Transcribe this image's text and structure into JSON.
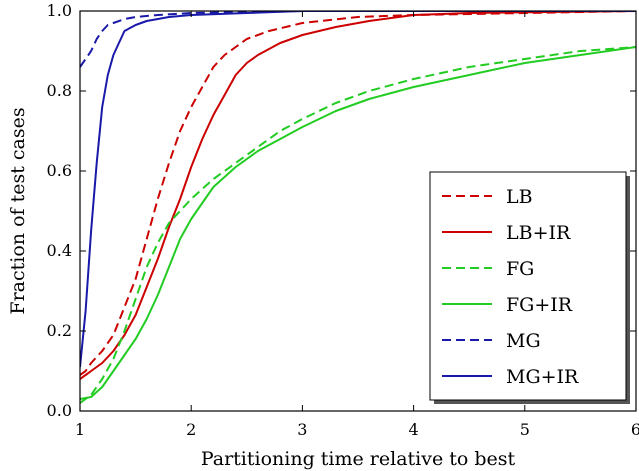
{
  "chart_data": {
    "type": "line",
    "title": "",
    "xlabel": "Partitioning time relative to best",
    "ylabel": "Fraction of test cases",
    "xlim": [
      1,
      6
    ],
    "ylim": [
      0.0,
      1.0
    ],
    "x_ticks": [
      "1",
      "2",
      "3",
      "4",
      "5",
      "6"
    ],
    "y_ticks": [
      "0.0",
      "0.2",
      "0.4",
      "0.6",
      "0.8",
      "1.0"
    ],
    "grid": false,
    "legend_position": "lower-right",
    "series": [
      {
        "name": "LB",
        "color": "#cc0000",
        "dashed": true,
        "points": [
          [
            1.0,
            0.09
          ],
          [
            1.05,
            0.1
          ],
          [
            1.1,
            0.12
          ],
          [
            1.2,
            0.15
          ],
          [
            1.3,
            0.19
          ],
          [
            1.4,
            0.26
          ],
          [
            1.5,
            0.33
          ],
          [
            1.6,
            0.43
          ],
          [
            1.7,
            0.53
          ],
          [
            1.8,
            0.62
          ],
          [
            1.9,
            0.7
          ],
          [
            2.0,
            0.76
          ],
          [
            2.1,
            0.81
          ],
          [
            2.2,
            0.86
          ],
          [
            2.3,
            0.89
          ],
          [
            2.4,
            0.91
          ],
          [
            2.5,
            0.93
          ],
          [
            2.7,
            0.95
          ],
          [
            3.0,
            0.97
          ],
          [
            3.5,
            0.985
          ],
          [
            4.0,
            0.99
          ],
          [
            5.0,
            0.995
          ],
          [
            6.0,
            1.0
          ]
        ]
      },
      {
        "name": "LB+IR",
        "color": "#cc0000",
        "dashed": false,
        "points": [
          [
            1.0,
            0.08
          ],
          [
            1.05,
            0.09
          ],
          [
            1.1,
            0.1
          ],
          [
            1.2,
            0.12
          ],
          [
            1.3,
            0.15
          ],
          [
            1.4,
            0.19
          ],
          [
            1.5,
            0.24
          ],
          [
            1.6,
            0.31
          ],
          [
            1.7,
            0.38
          ],
          [
            1.8,
            0.46
          ],
          [
            1.9,
            0.53
          ],
          [
            2.0,
            0.61
          ],
          [
            2.1,
            0.68
          ],
          [
            2.2,
            0.74
          ],
          [
            2.3,
            0.79
          ],
          [
            2.4,
            0.84
          ],
          [
            2.5,
            0.87
          ],
          [
            2.6,
            0.89
          ],
          [
            2.8,
            0.92
          ],
          [
            3.0,
            0.94
          ],
          [
            3.3,
            0.96
          ],
          [
            3.6,
            0.975
          ],
          [
            4.0,
            0.99
          ],
          [
            4.5,
            0.995
          ],
          [
            6.0,
            1.0
          ]
        ]
      },
      {
        "name": "FG",
        "color": "#22cc22",
        "dashed": true,
        "points": [
          [
            1.0,
            0.02
          ],
          [
            1.1,
            0.04
          ],
          [
            1.2,
            0.08
          ],
          [
            1.3,
            0.13
          ],
          [
            1.4,
            0.2
          ],
          [
            1.5,
            0.28
          ],
          [
            1.6,
            0.36
          ],
          [
            1.7,
            0.42
          ],
          [
            1.8,
            0.47
          ],
          [
            1.9,
            0.5
          ],
          [
            2.0,
            0.53
          ],
          [
            2.2,
            0.58
          ],
          [
            2.4,
            0.62
          ],
          [
            2.6,
            0.66
          ],
          [
            2.8,
            0.7
          ],
          [
            3.0,
            0.73
          ],
          [
            3.3,
            0.77
          ],
          [
            3.6,
            0.8
          ],
          [
            4.0,
            0.83
          ],
          [
            4.5,
            0.86
          ],
          [
            5.0,
            0.88
          ],
          [
            5.5,
            0.9
          ],
          [
            6.0,
            0.91
          ]
        ]
      },
      {
        "name": "FG+IR",
        "color": "#22cc22",
        "dashed": false,
        "points": [
          [
            1.0,
            0.03
          ],
          [
            1.1,
            0.035
          ],
          [
            1.2,
            0.06
          ],
          [
            1.3,
            0.1
          ],
          [
            1.4,
            0.14
          ],
          [
            1.5,
            0.18
          ],
          [
            1.6,
            0.23
          ],
          [
            1.7,
            0.29
          ],
          [
            1.8,
            0.36
          ],
          [
            1.9,
            0.43
          ],
          [
            2.0,
            0.48
          ],
          [
            2.2,
            0.56
          ],
          [
            2.4,
            0.61
          ],
          [
            2.6,
            0.65
          ],
          [
            2.8,
            0.68
          ],
          [
            3.0,
            0.71
          ],
          [
            3.3,
            0.75
          ],
          [
            3.6,
            0.78
          ],
          [
            4.0,
            0.81
          ],
          [
            4.5,
            0.84
          ],
          [
            5.0,
            0.87
          ],
          [
            5.5,
            0.89
          ],
          [
            6.0,
            0.91
          ]
        ]
      },
      {
        "name": "MG",
        "color": "#1a1aaa",
        "dashed": true,
        "points": [
          [
            1.0,
            0.86
          ],
          [
            1.05,
            0.88
          ],
          [
            1.1,
            0.9
          ],
          [
            1.15,
            0.93
          ],
          [
            1.2,
            0.95
          ],
          [
            1.25,
            0.965
          ],
          [
            1.3,
            0.97
          ],
          [
            1.4,
            0.98
          ],
          [
            1.5,
            0.985
          ],
          [
            1.7,
            0.99
          ],
          [
            2.0,
            0.995
          ],
          [
            3.0,
            1.0
          ],
          [
            6.0,
            1.0
          ]
        ]
      },
      {
        "name": "MG+IR",
        "color": "#1a1aaa",
        "dashed": false,
        "points": [
          [
            1.0,
            0.11
          ],
          [
            1.05,
            0.25
          ],
          [
            1.1,
            0.45
          ],
          [
            1.15,
            0.62
          ],
          [
            1.2,
            0.76
          ],
          [
            1.25,
            0.84
          ],
          [
            1.3,
            0.89
          ],
          [
            1.35,
            0.92
          ],
          [
            1.4,
            0.95
          ],
          [
            1.5,
            0.965
          ],
          [
            1.6,
            0.975
          ],
          [
            1.8,
            0.985
          ],
          [
            2.0,
            0.99
          ],
          [
            2.5,
            0.995
          ],
          [
            3.0,
            1.0
          ],
          [
            6.0,
            1.0
          ]
        ]
      }
    ]
  }
}
